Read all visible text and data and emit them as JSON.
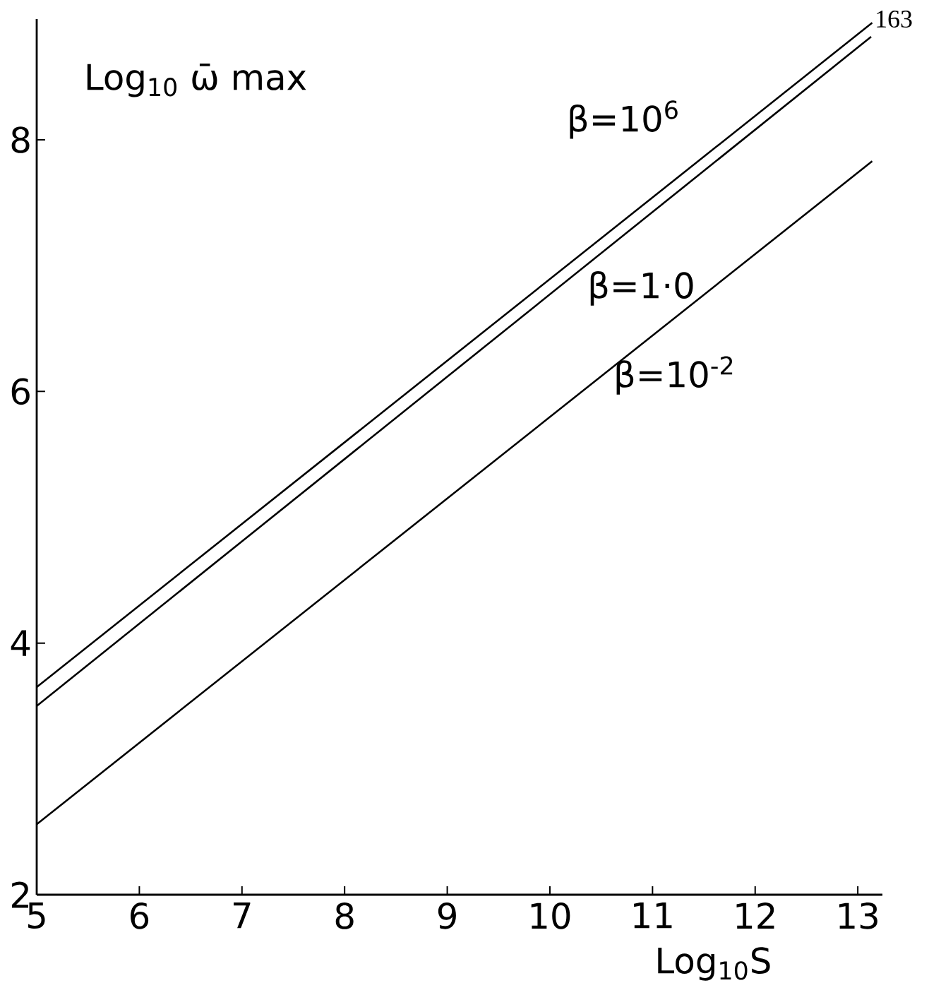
{
  "chart_data": {
    "type": "line",
    "xlabel": "Log$_{10}$S",
    "ylabel": "Log$_{10}$ ω̄ max",
    "xlim": [
      5,
      13.24
    ],
    "ylim": [
      2,
      8.96
    ],
    "xticks": [
      5,
      6,
      7,
      8,
      9,
      10,
      11,
      12,
      13
    ],
    "yticks": [
      2,
      4,
      6,
      8
    ],
    "series": [
      {
        "name": "β=10$^{6}$",
        "color": "#000000",
        "x": [
          5,
          13.14
        ],
        "values": [
          3.65,
          8.93
        ]
      },
      {
        "name": "β=1·0",
        "color": "#000000",
        "x": [
          5,
          13.13
        ],
        "values": [
          3.5,
          8.82
        ]
      },
      {
        "name": "β=10$^{-2}$",
        "color": "#000000",
        "x": [
          5,
          13.14
        ],
        "values": [
          2.56,
          7.83
        ]
      }
    ],
    "annotations": [
      "163"
    ]
  }
}
